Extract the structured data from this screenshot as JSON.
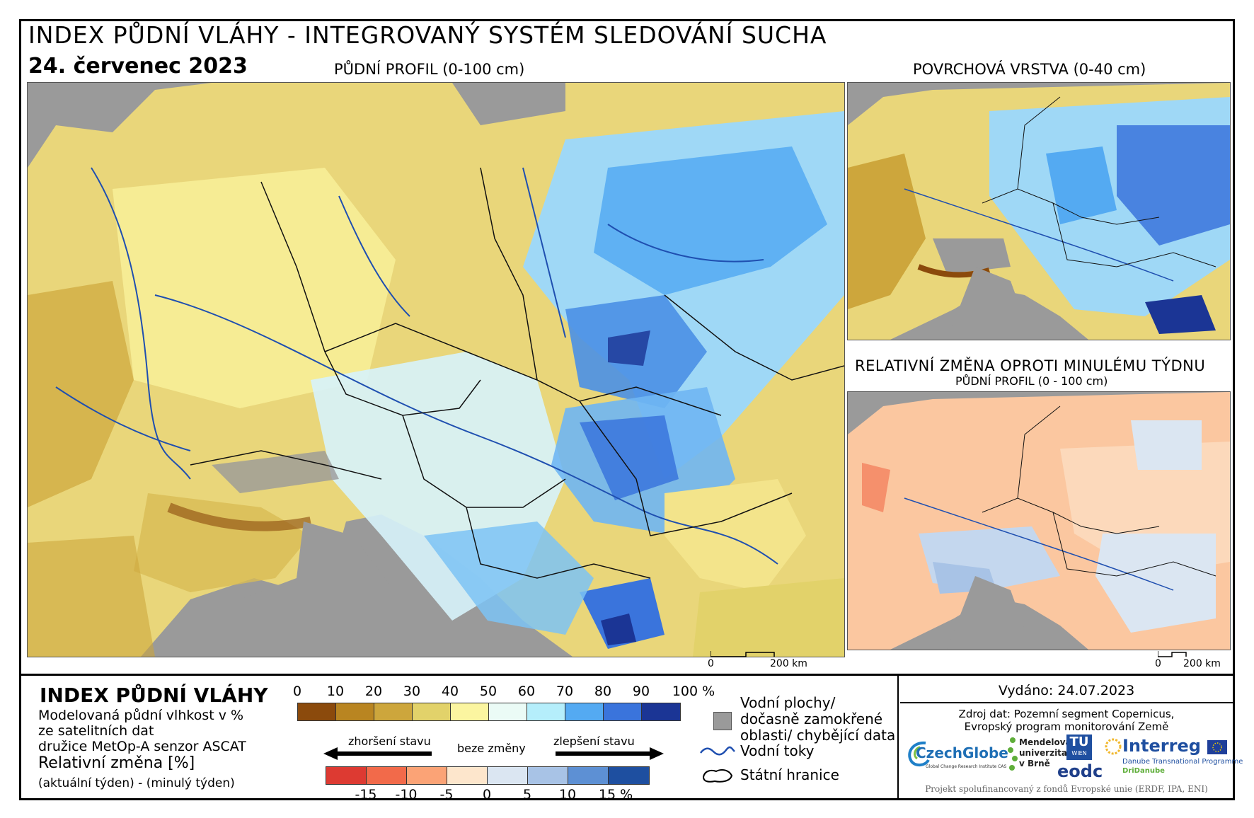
{
  "title": "INDEX PŮDNÍ VLÁHY - INTEGROVANÝ SYSTÉM SLEDOVÁNÍ SUCHA",
  "date": "24. červenec 2023",
  "maps": {
    "main_label": "PŮDNÍ PROFIL (0-100 cm)",
    "surface_label": "POVRCHOVÁ VRSTVA (0-40 cm)",
    "change_label": "RELATIVNÍ ZMĚNA OPROTI MINULÉMU TÝDNU",
    "change_sublabel": "PŮDNÍ PROFIL (0 - 100 cm)"
  },
  "scalebar": {
    "zero": "0",
    "distance": "200 km"
  },
  "legend": {
    "title": "INDEX PŮDNÍ VLÁHY",
    "desc1": "Modelovaná půdní vlhkost v %",
    "desc2": "ze satelitních dat",
    "desc3": "družice MetOp-A senzor ASCAT",
    "rel_title": "Relativní změna [%]",
    "rel_desc": "(aktuální týden) - (minulý týden)",
    "index_ticks": [
      "0",
      "10",
      "20",
      "30",
      "40",
      "50",
      "60",
      "70",
      "80",
      "90",
      "100 %"
    ],
    "index_colors": [
      "#8b4a0c",
      "#b98521",
      "#cda63c",
      "#e2d26a",
      "#fbf5a0",
      "#ebfbf6",
      "#b5eefb",
      "#54aaf2",
      "#3a74dc",
      "#1b3595"
    ],
    "change_ticks": [
      "-15",
      "-10",
      "-5",
      "0",
      "5",
      "10",
      "15 %"
    ],
    "change_colors": [
      "#dd3a32",
      "#f26a4a",
      "#fba376",
      "#fde6cc",
      "#dbe6f2",
      "#a8c3e6",
      "#5d90d4",
      "#1e4fa0"
    ],
    "worse": "zhoršení stavu",
    "nochange": "beze změny",
    "better": "zlepšení stavu",
    "water": "Vodní plochy/ dočasně zamokřené oblasti/ chybějící data",
    "rivers": "Vodní toky",
    "borders": "Státní hranice"
  },
  "issued": "Vydáno: 24.07.2023",
  "source": {
    "line1": "Zdroj dat: Pozemní segment Copernicus,",
    "line2": "Evropský program monitorování Země"
  },
  "logos": {
    "czechglobe": "CzechGlobe",
    "czechglobe_sub": "Global Change Research Institute CAS",
    "mendel1": "Mendelova",
    "mendel2": "univerzita",
    "mendel3": "v Brně",
    "tu1": "TU",
    "tu2": "WIEN",
    "eodc": "eodc",
    "interreg": "Interreg",
    "interreg_sub1": "Danube Transnational Programme",
    "interreg_sub2": "DriDanube"
  },
  "footer": "Projekt spolufinancovaný z fondů Evropské unie (ERDF, IPA, ENI)"
}
